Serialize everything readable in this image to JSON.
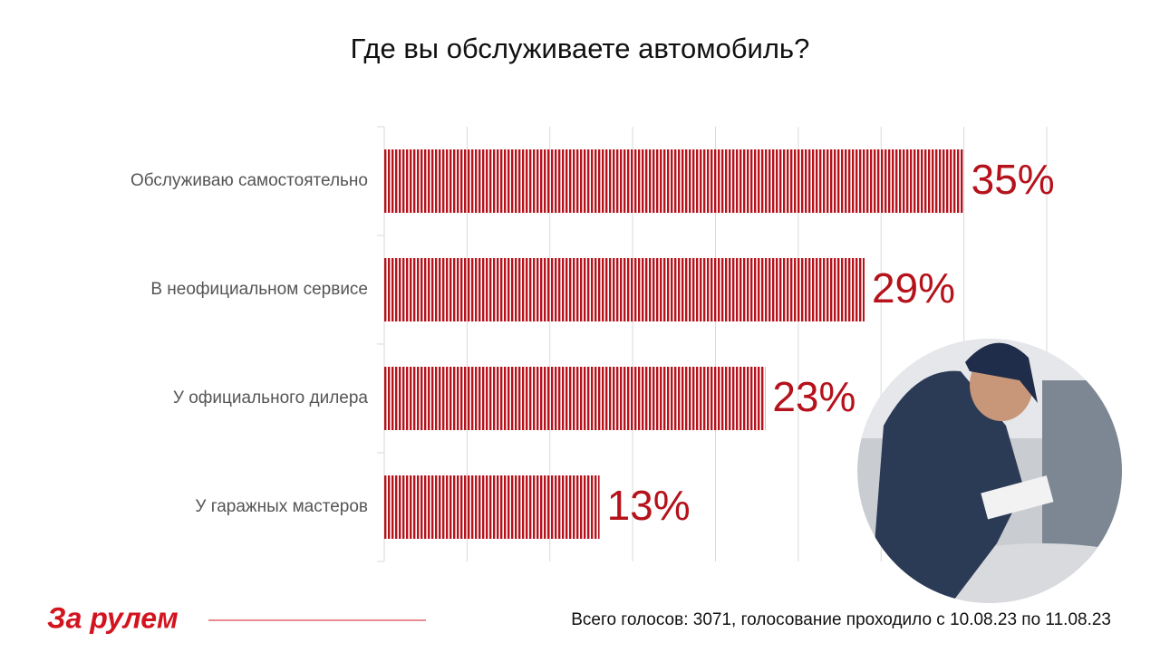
{
  "chart_data": {
    "type": "barh",
    "title": "Где вы обслуживаете автомобиль?",
    "categories": [
      "Обслуживаю самостоятельно",
      "В неофициальном сервисе",
      "У официального дилера",
      "У гаражных мастеров"
    ],
    "values": [
      35,
      29,
      23,
      13
    ],
    "value_labels": [
      "35%",
      "29%",
      "23%",
      "13%"
    ],
    "color": "#b5121b",
    "xlim": [
      0,
      40
    ],
    "xticks": [
      0,
      5,
      10,
      15,
      20,
      25,
      30,
      35,
      40
    ],
    "grid": true
  },
  "footer": {
    "logo": "За рулем",
    "note": "Всего голосов: 3071, голосование проходило с 10.08.23 по 11.08.23"
  }
}
